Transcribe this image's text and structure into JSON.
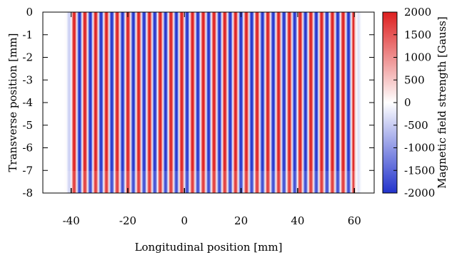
{
  "chart_data": {
    "type": "heatmap",
    "title": "",
    "xlabel": "Longitudinal position [mm]",
    "ylabel": "Transverse position [mm]",
    "colorbar_label": "Magnetic field strength [Gauss]",
    "xlim": [
      -50,
      67
    ],
    "ylim": [
      -8,
      0
    ],
    "x_ticks": [
      -40,
      -20,
      0,
      20,
      40,
      60
    ],
    "x_tick_labels": [
      "-40",
      "-20",
      "0",
      "20",
      "40",
      "60"
    ],
    "y_ticks": [
      0,
      -1,
      -2,
      -3,
      -4,
      -5,
      -6,
      -7,
      -8
    ],
    "y_tick_labels": [
      "0",
      "-1",
      "-2",
      "-3",
      "-4",
      "-5",
      "-6",
      "-7",
      "-8"
    ],
    "clim": [
      -2000,
      2000
    ],
    "colorbar_ticks": [
      2000,
      1500,
      1000,
      500,
      0,
      -500,
      -1000,
      -1500,
      -2000
    ],
    "colorbar_tick_labels": [
      "2000",
      "1500",
      "1000",
      "500",
      "0",
      "-500",
      "-1000",
      "-1500",
      "-2000"
    ],
    "field": {
      "pattern": "periodic stripes along longitudinal axis",
      "peak_amplitude": 2000,
      "period_mm": 3.8,
      "start_mm": -40,
      "end_mm": 60,
      "edge_fade_mm": 2.5,
      "lighter_band_below_transverse_mm": -7.1
    },
    "colormap": [
      "#2233cc",
      "#ffffff",
      "#dd1f1f"
    ]
  }
}
